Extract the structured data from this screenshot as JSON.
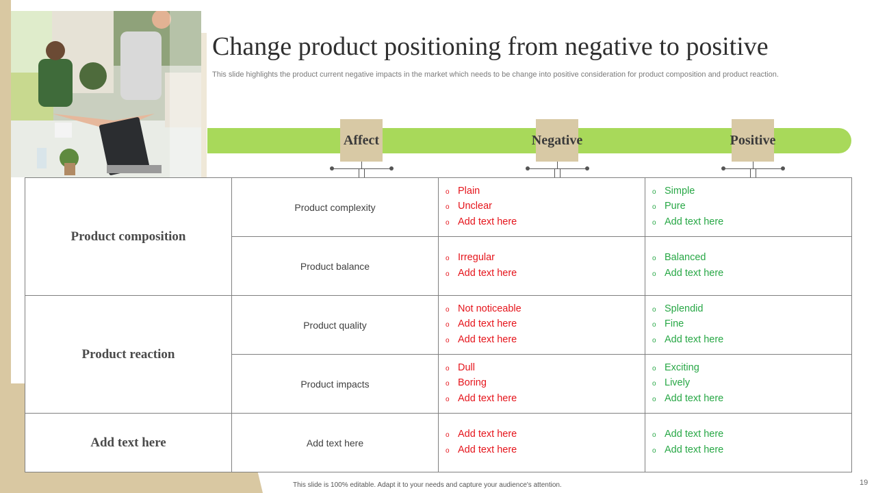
{
  "slide": {
    "title": "Change product positioning from negative to positive",
    "subtitle": "This slide highlights the product current negative impacts in the market which needs to be change into positive consideration for product composition and product reaction.",
    "footer": "This slide is 100% editable.  Adapt it to your needs and capture your audience's attention.",
    "page_number": "19"
  },
  "header": {
    "affect": "Affect",
    "negative": "Negative",
    "positive": "Positive"
  },
  "bullet": "o",
  "colors": {
    "negative_text": "#e5141b",
    "positive_text": "#27a745",
    "green_bar": "#a8d95a",
    "tan": "#d8c9a5"
  },
  "groups": [
    {
      "affect": "Product composition",
      "rows": [
        {
          "sub": "Product complexity",
          "negative": [
            "Plain",
            "Unclear",
            "Add text here"
          ],
          "positive": [
            "Simple",
            "Pure",
            "Add text here"
          ]
        },
        {
          "sub": "Product balance",
          "negative": [
            "Irregular",
            "Add text here"
          ],
          "positive": [
            "Balanced",
            "Add text here"
          ]
        }
      ]
    },
    {
      "affect": "Product reaction",
      "rows": [
        {
          "sub": "Product quality",
          "negative": [
            "Not noticeable",
            "Add text here",
            "Add text here"
          ],
          "positive": [
            "Splendid",
            "Fine",
            "Add text here"
          ]
        },
        {
          "sub": "Product impacts",
          "negative": [
            "Dull",
            "Boring",
            "Add text here"
          ],
          "positive": [
            "Exciting",
            "Lively",
            "Add text here"
          ]
        }
      ]
    },
    {
      "affect": "Add text here",
      "rows": [
        {
          "sub": "Add text here",
          "negative": [
            "Add text here",
            "Add text here"
          ],
          "positive": [
            "Add text here",
            "Add text here"
          ]
        }
      ]
    }
  ]
}
